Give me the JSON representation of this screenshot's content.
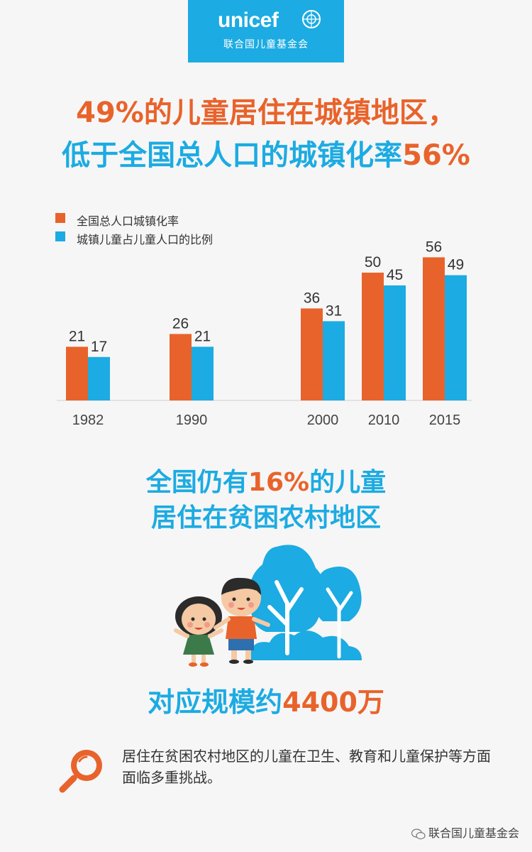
{
  "logo": {
    "wordmark": "unicef",
    "subtitle": "联合国儿童基金会"
  },
  "headline": {
    "line1_pct": "49%",
    "line1_rest": "的儿童居住在城镇地区，",
    "line2_text": "低于全国总人口的城镇化率",
    "line2_pct": "56%"
  },
  "chart_data": {
    "type": "bar",
    "categories": [
      "1982",
      "1990",
      "2000",
      "2010",
      "2015"
    ],
    "series": [
      {
        "name": "全国总人口城镇化率",
        "values": [
          21,
          26,
          36,
          50,
          56
        ],
        "color": "#e8632b"
      },
      {
        "name": "城镇儿童占儿童人口的比例",
        "values": [
          17,
          21,
          31,
          45,
          49
        ],
        "color": "#1cabe2"
      }
    ],
    "legend_position": "top-left",
    "grid": false
  },
  "poverty": {
    "line1_a": "全国仍有",
    "line1_pct": "16%",
    "line1_b": "的儿童",
    "line2": "居住在贫困农村地区",
    "scale_text": "对应规模约",
    "scale_num": "4400万"
  },
  "note": {
    "icon": "magnifier-icon",
    "text": "居住在贫困农村地区的儿童在卫生、教育和儿童保护等方面面临多重挑战。"
  },
  "footer": {
    "icon": "wechat-icon",
    "text": "联合国儿童基金会"
  },
  "colors": {
    "orange": "#e8632b",
    "blue": "#1cabe2"
  }
}
